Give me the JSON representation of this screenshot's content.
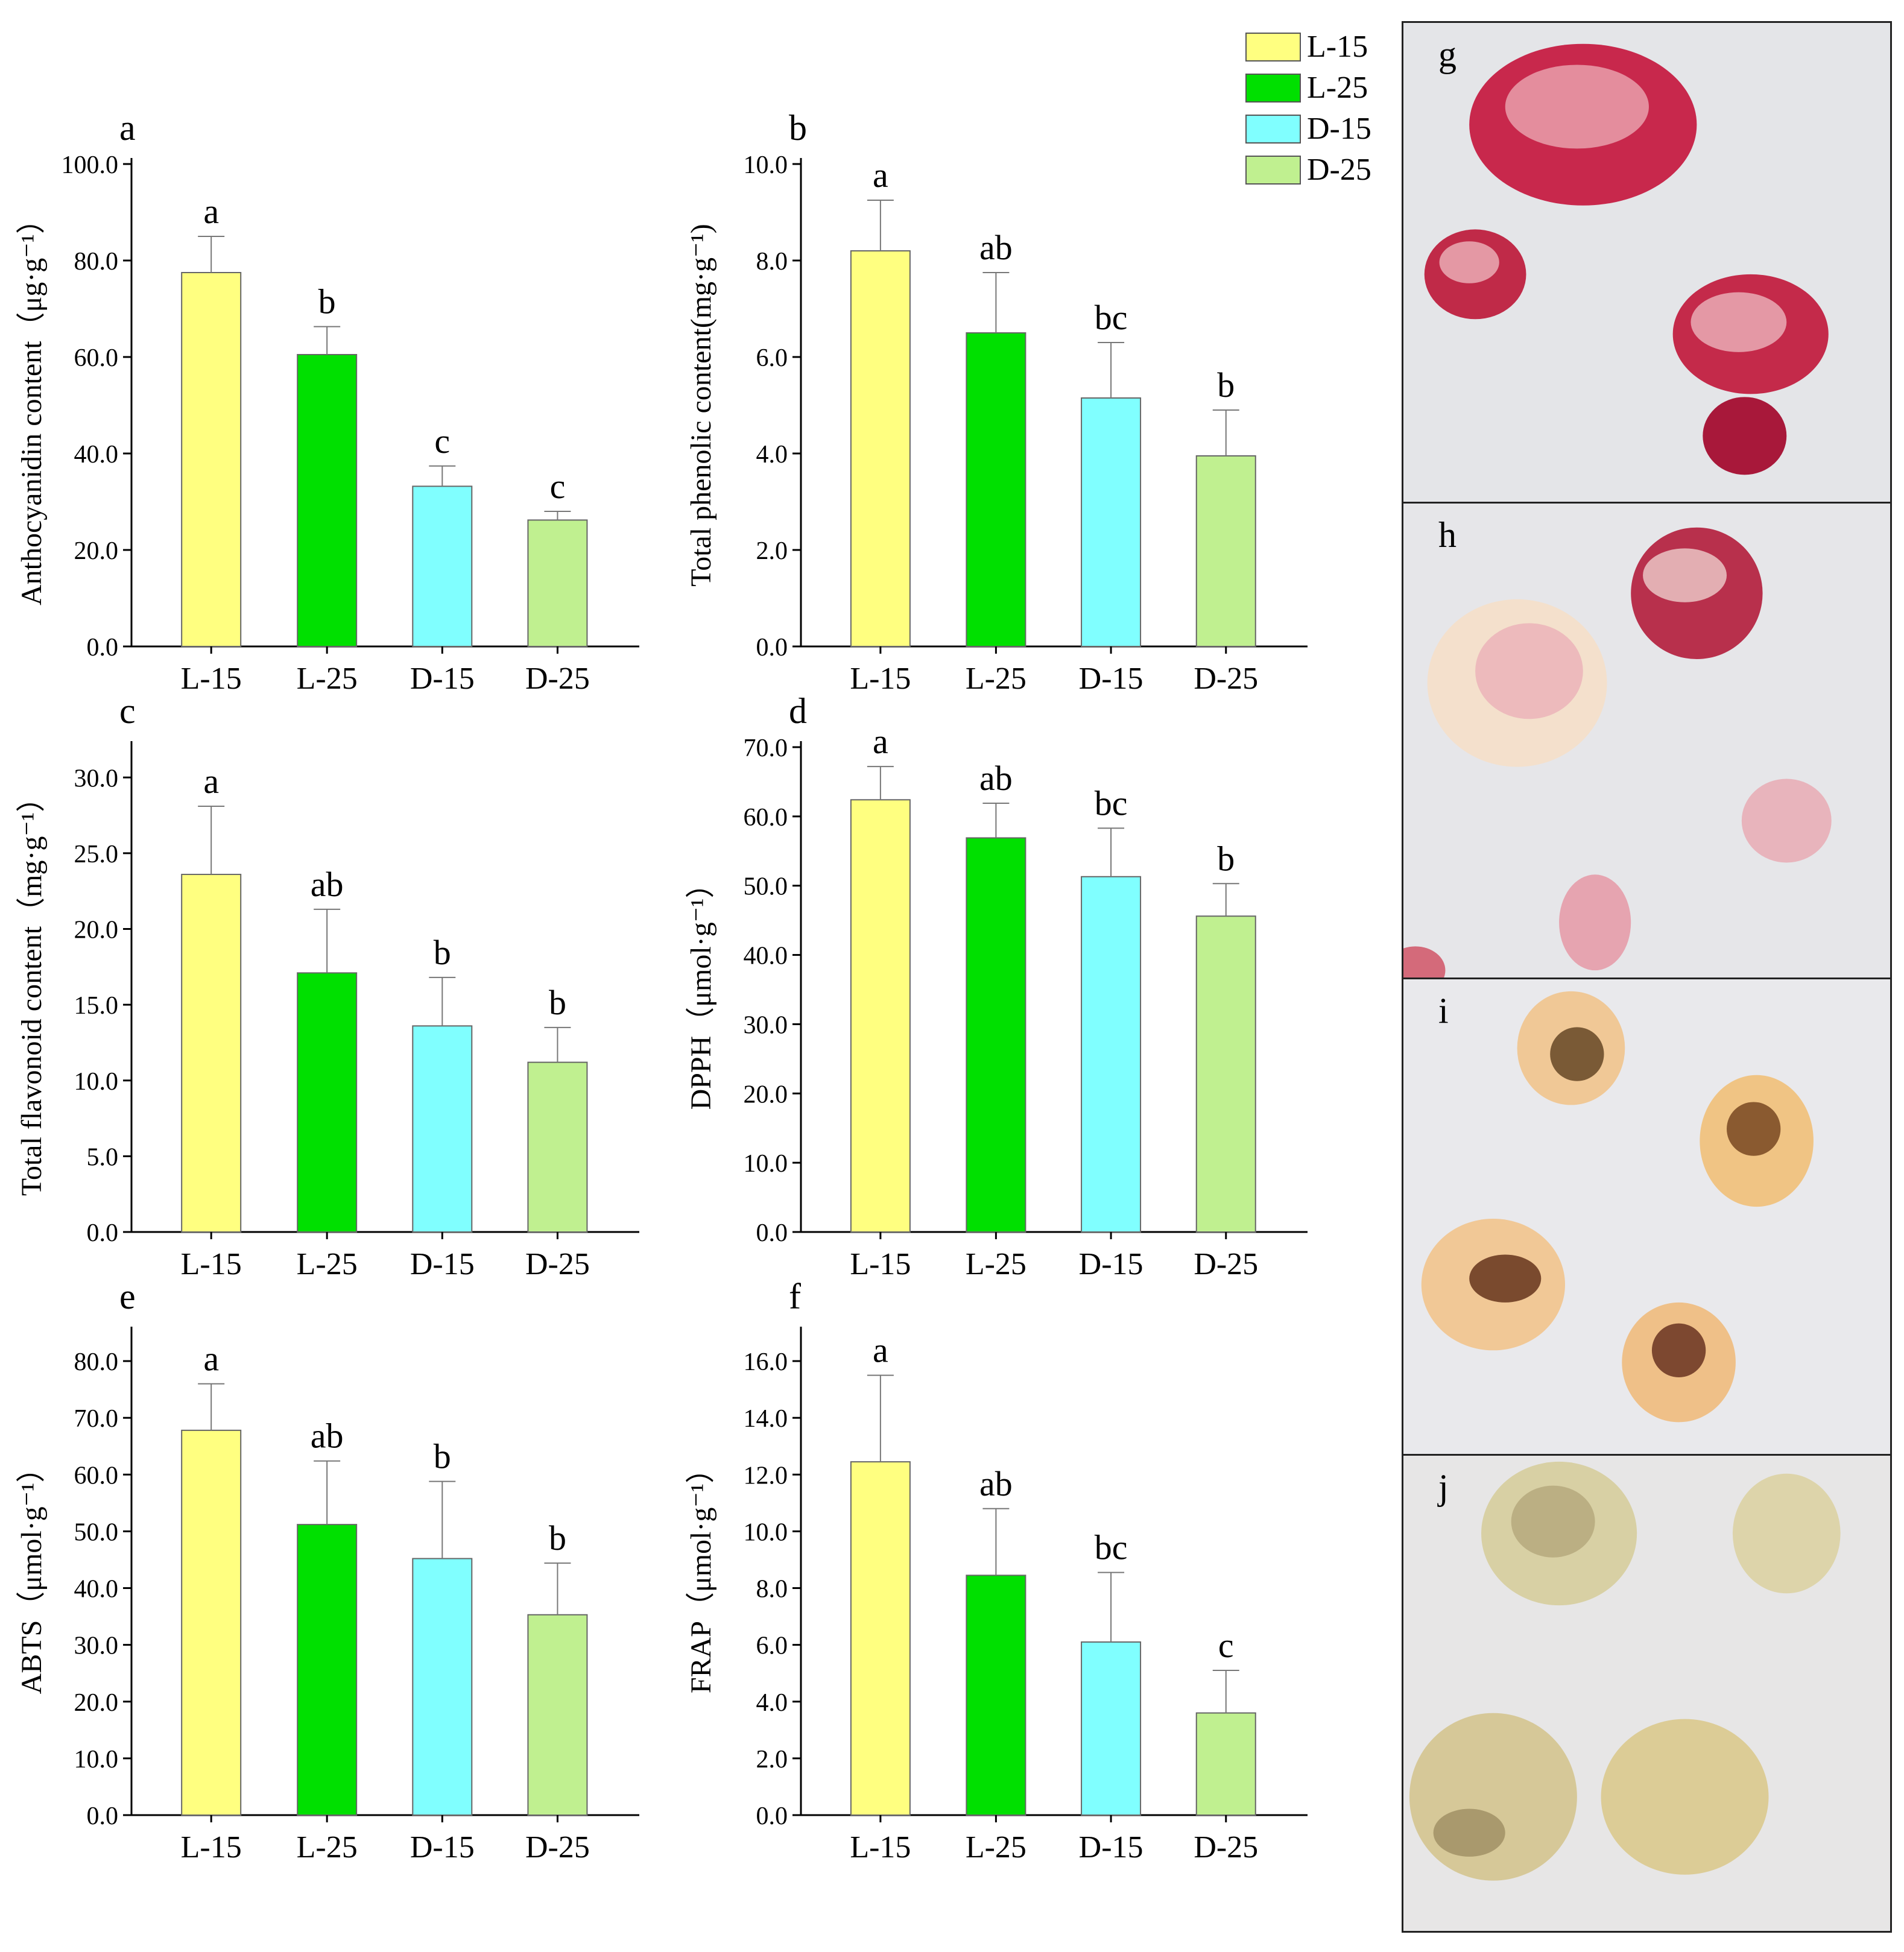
{
  "legend": {
    "items": [
      {
        "label": "L-15",
        "color": "#ffff80"
      },
      {
        "label": "L-25",
        "color": "#00e000"
      },
      {
        "label": "D-15",
        "color": "#80ffff"
      },
      {
        "label": "D-25",
        "color": "#c0f090"
      }
    ]
  },
  "photos": [
    {
      "label": "g",
      "description_colors": [
        "#c0204a",
        "#f2c8c8"
      ]
    },
    {
      "label": "h",
      "description_colors": [
        "#b8304c",
        "#f5e2d0"
      ]
    },
    {
      "label": "i",
      "description_colors": [
        "#8a5a30",
        "#f0c88a"
      ]
    },
    {
      "label": "j",
      "description_colors": [
        "#d8d0a0",
        "#eee6c8"
      ]
    }
  ],
  "chart_data": [
    {
      "type": "bar",
      "panel": "a",
      "ylabel": "Anthocyanidin content（μg·g⁻¹）",
      "categories": [
        "L-15",
        "L-25",
        "D-15",
        "D-25"
      ],
      "values": [
        77.5,
        60.5,
        33.2,
        26.2
      ],
      "errors": [
        7.5,
        5.8,
        4.2,
        1.8
      ],
      "letters": [
        "a",
        "b",
        "c",
        "c"
      ],
      "ylim": [
        0,
        100
      ],
      "yticks": [
        0,
        20,
        40,
        60,
        80,
        100
      ],
      "ytick_labels": [
        "0.0",
        "20.0",
        "40.0",
        "60.0",
        "80.0",
        "100.0"
      ]
    },
    {
      "type": "bar",
      "panel": "b",
      "ylabel": "Total phenolic content(mg·g⁻¹)",
      "categories": [
        "L-15",
        "L-25",
        "D-15",
        "D-25"
      ],
      "values": [
        8.2,
        6.5,
        5.15,
        3.95
      ],
      "errors": [
        1.05,
        1.25,
        1.15,
        0.95
      ],
      "letters": [
        "a",
        "ab",
        "bc",
        "b"
      ],
      "ylim": [
        0,
        10
      ],
      "yticks": [
        0,
        2,
        4,
        6,
        8,
        10
      ],
      "ytick_labels": [
        "0.0",
        "2.0",
        "4.0",
        "6.0",
        "8.0",
        "10.0"
      ]
    },
    {
      "type": "bar",
      "panel": "c",
      "ylabel": "Total flavonoid content（mg·g⁻¹）",
      "categories": [
        "L-15",
        "L-25",
        "D-15",
        "D-25"
      ],
      "values": [
        23.6,
        17.1,
        13.6,
        11.2
      ],
      "errors": [
        4.5,
        4.2,
        3.2,
        2.3
      ],
      "letters": [
        "a",
        "ab",
        "b",
        "b"
      ],
      "ylim": [
        0,
        32
      ],
      "yticks": [
        0,
        5,
        10,
        15,
        20,
        25,
        30
      ],
      "ytick_labels": [
        "0.0",
        "5.0",
        "10.0",
        "15.0",
        "20.0",
        "25.0",
        "30.0"
      ]
    },
    {
      "type": "bar",
      "panel": "d",
      "ylabel": "DPPH（μmol·g⁻¹）",
      "categories": [
        "L-15",
        "L-25",
        "D-15",
        "D-25"
      ],
      "values": [
        62.4,
        56.9,
        51.3,
        45.6
      ],
      "errors": [
        4.8,
        5.0,
        7.0,
        4.7
      ],
      "letters": [
        "a",
        "ab",
        "bc",
        "b"
      ],
      "ylim": [
        0,
        70
      ],
      "yticks": [
        0,
        10,
        20,
        30,
        40,
        50,
        60,
        70
      ],
      "ytick_labels": [
        "0.0",
        "10.0",
        "20.0",
        "30.0",
        "40.0",
        "50.0",
        "60.0",
        "70.0"
      ]
    },
    {
      "type": "bar",
      "panel": "e",
      "ylabel": "ABTS（μmol·g⁻¹）",
      "categories": [
        "L-15",
        "L-25",
        "D-15",
        "D-25"
      ],
      "values": [
        67.8,
        51.2,
        45.2,
        35.3
      ],
      "errors": [
        8.2,
        11.2,
        13.6,
        9.1
      ],
      "letters": [
        "a",
        "ab",
        "b",
        "b"
      ],
      "ylim": [
        0,
        85
      ],
      "yticks": [
        0,
        10,
        20,
        30,
        40,
        50,
        60,
        70,
        80
      ],
      "ytick_labels": [
        "0.0",
        "10.0",
        "20.0",
        "30.0",
        "40.0",
        "50.0",
        "60.0",
        "70.0",
        "80.0"
      ]
    },
    {
      "type": "bar",
      "panel": "f",
      "ylabel": "FRAP（μmol·g⁻¹）",
      "categories": [
        "L-15",
        "L-25",
        "D-15",
        "D-25"
      ],
      "values": [
        12.45,
        8.45,
        6.1,
        3.6
      ],
      "errors": [
        3.05,
        2.35,
        2.45,
        1.5
      ],
      "letters": [
        "a",
        "ab",
        "bc",
        "c"
      ],
      "ylim": [
        0,
        17
      ],
      "yticks": [
        0,
        2,
        4,
        6,
        8,
        10,
        12,
        14,
        16
      ],
      "ytick_labels": [
        "0.0",
        "2.0",
        "4.0",
        "6.0",
        "8.0",
        "10.0",
        "12.0",
        "14.0",
        "16.0"
      ]
    }
  ]
}
